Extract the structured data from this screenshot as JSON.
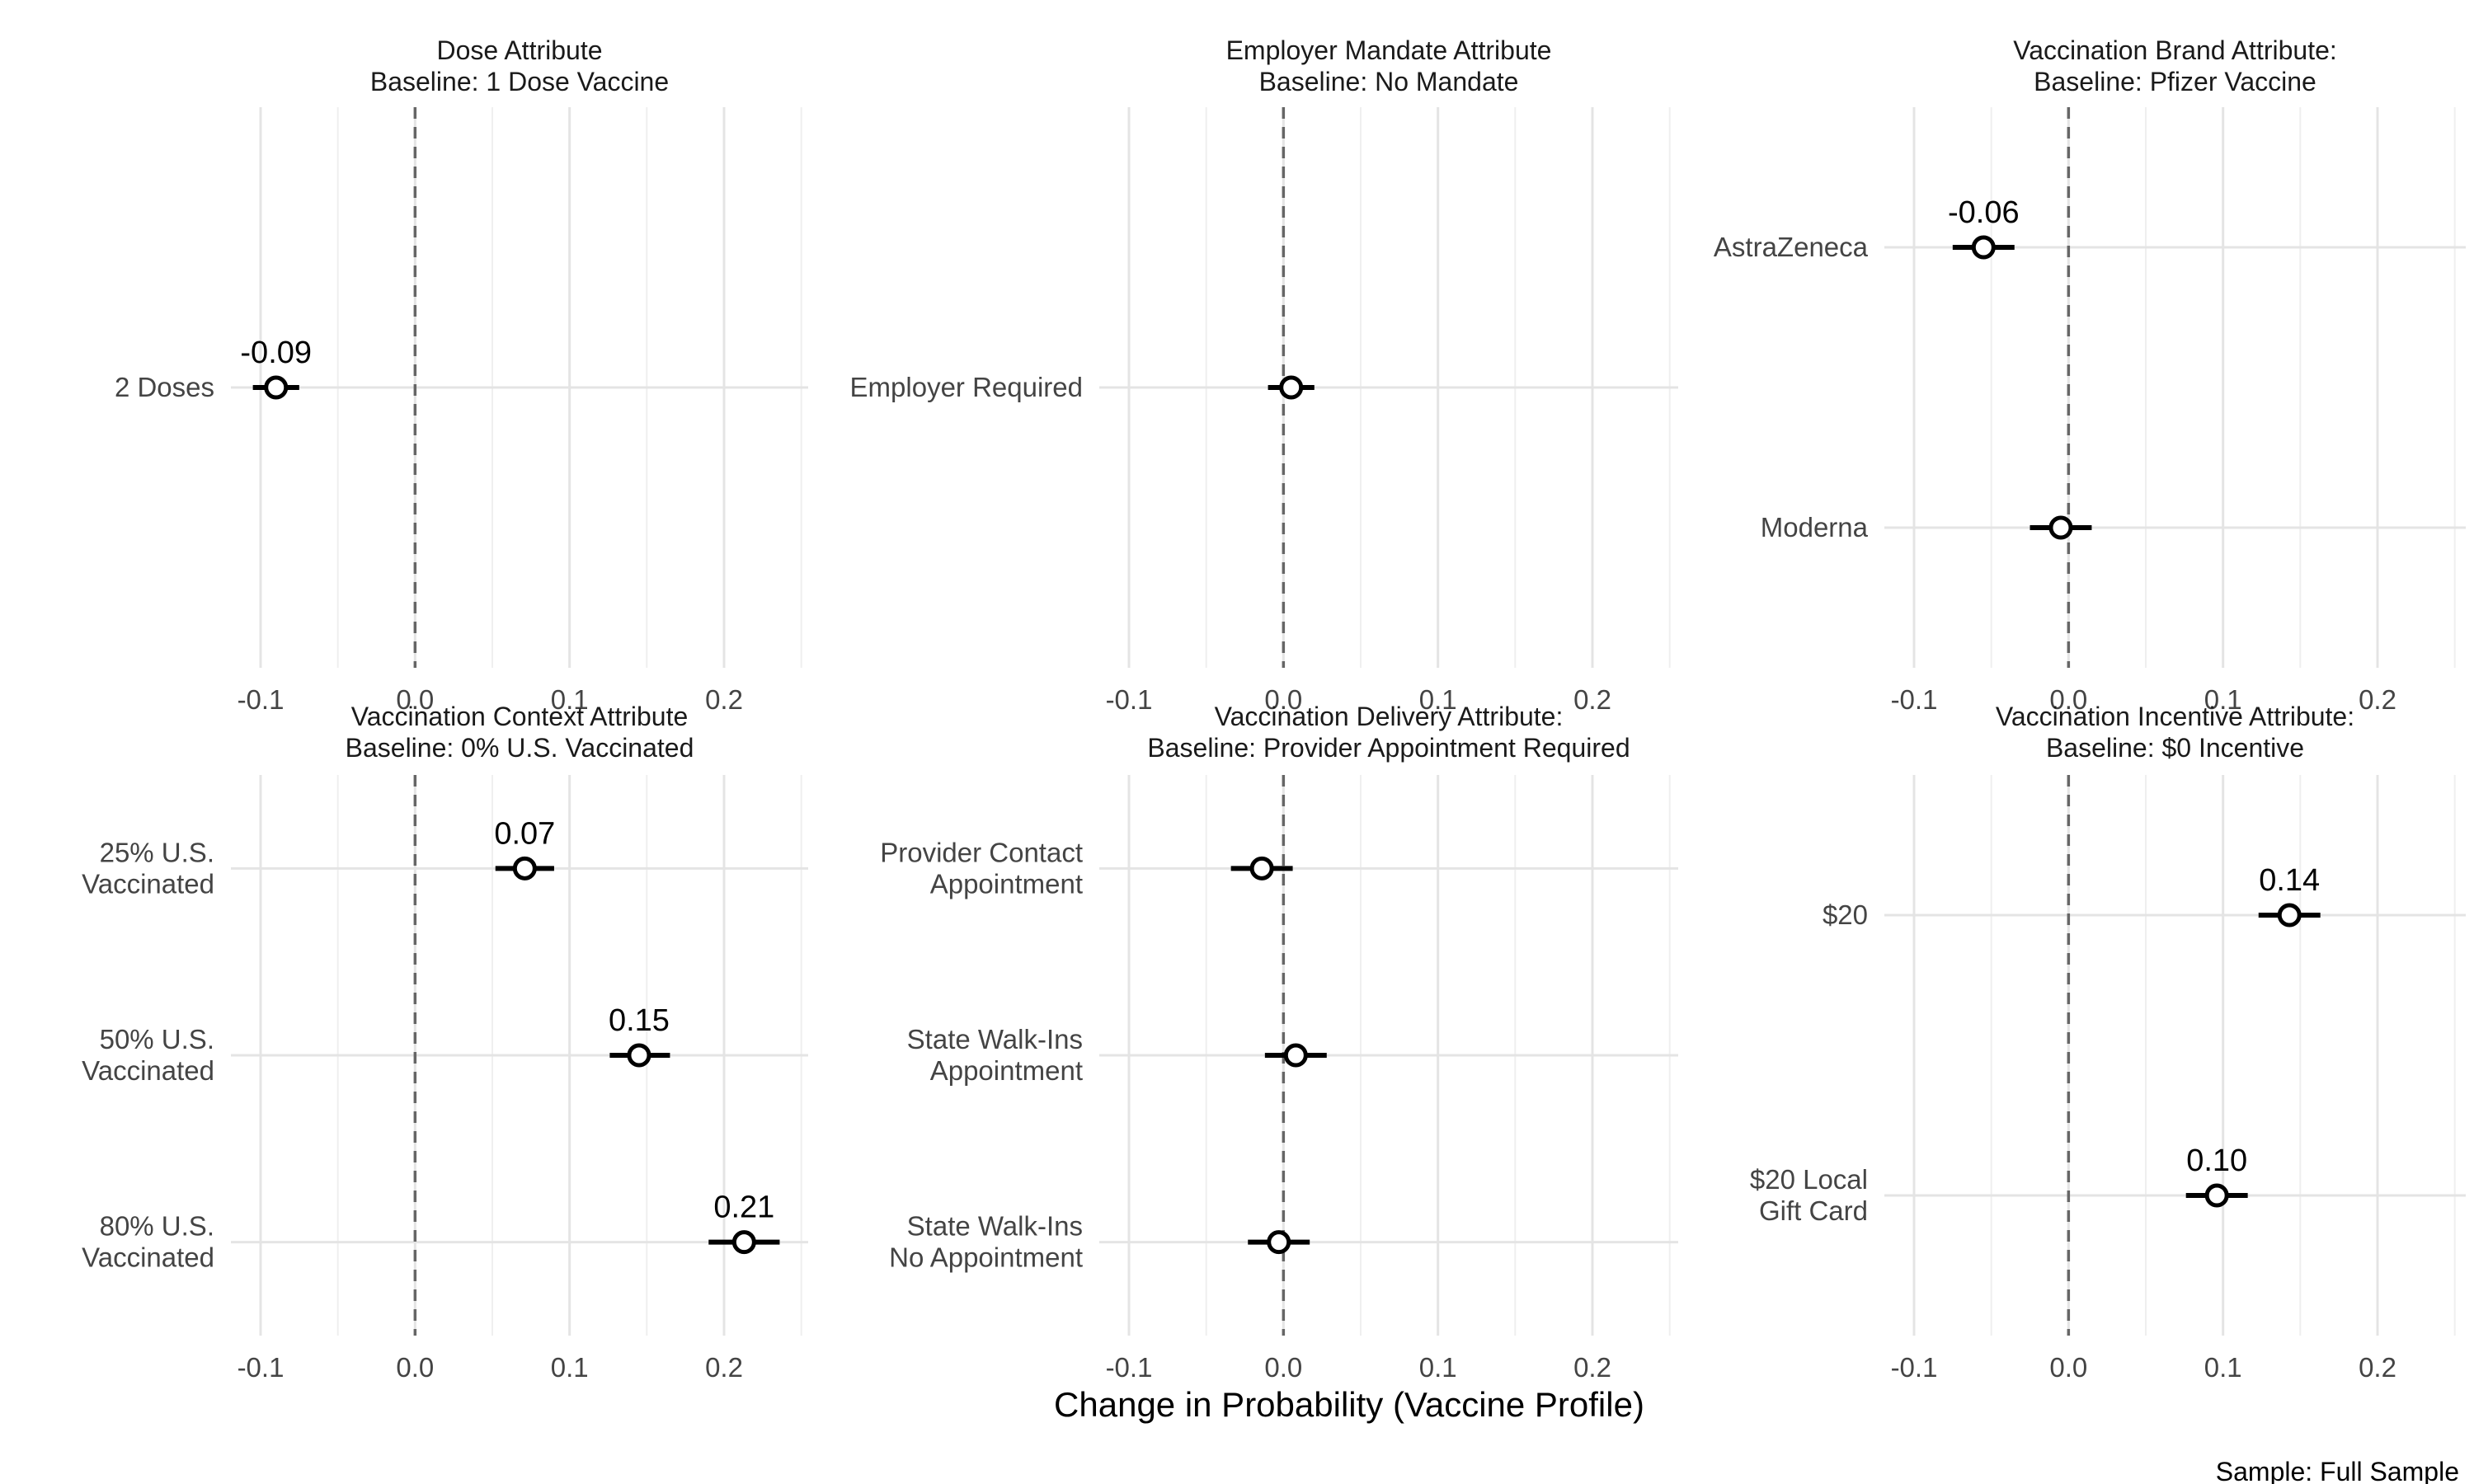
{
  "chart_data": [
    {
      "type": "scatter",
      "title": [
        "Dose Attribute",
        "Baseline: 1 Dose Vaccine"
      ],
      "categories": [
        [
          "2 Doses"
        ]
      ],
      "series": [
        {
          "values": [
            -0.09
          ],
          "ci_low": [
            -0.105
          ],
          "ci_high": [
            -0.075
          ],
          "labels": [
            "-0.09"
          ]
        }
      ],
      "xlim": [
        -0.1,
        0.2
      ],
      "xticks": [
        "-0.1",
        "0.0",
        "0.1",
        "0.2"
      ],
      "reference_line": 0
    },
    {
      "type": "scatter",
      "title": [
        "Employer Mandate Attribute",
        "Baseline: No Mandate"
      ],
      "categories": [
        [
          "Employer Required"
        ]
      ],
      "series": [
        {
          "values": [
            0.005
          ],
          "ci_low": [
            -0.01
          ],
          "ci_high": [
            0.02
          ],
          "labels": [
            ""
          ]
        }
      ],
      "xlim": [
        -0.1,
        0.2
      ],
      "xticks": [
        "-0.1",
        "0.0",
        "0.1",
        "0.2"
      ],
      "reference_line": 0
    },
    {
      "type": "scatter",
      "title": [
        "Vaccination Brand Attribute:",
        "Baseline: Pfizer Vaccine"
      ],
      "categories": [
        [
          "AstraZeneca"
        ],
        [
          "Moderna"
        ]
      ],
      "series": [
        {
          "values": [
            -0.055,
            -0.005
          ],
          "ci_low": [
            -0.075,
            -0.025
          ],
          "ci_high": [
            -0.035,
            0.015
          ],
          "labels": [
            "-0.06",
            ""
          ]
        }
      ],
      "xlim": [
        -0.1,
        0.2
      ],
      "xticks": [
        "-0.1",
        "0.0",
        "0.1",
        "0.2"
      ],
      "reference_line": 0
    },
    {
      "type": "scatter",
      "title": [
        "Vaccination Context Attribute",
        "Baseline: 0% U.S. Vaccinated"
      ],
      "categories": [
        [
          "25% U.S.",
          "Vaccinated"
        ],
        [
          "50% U.S.",
          "Vaccinated"
        ],
        [
          "80% U.S.",
          "Vaccinated"
        ]
      ],
      "series": [
        {
          "values": [
            0.071,
            0.145,
            0.213
          ],
          "ci_low": [
            0.052,
            0.126,
            0.19
          ],
          "ci_high": [
            0.09,
            0.165,
            0.236
          ],
          "labels": [
            "0.07",
            "0.15",
            "0.21"
          ]
        }
      ],
      "xlim": [
        -0.1,
        0.2
      ],
      "xticks": [
        "-0.1",
        "0.0",
        "0.1",
        "0.2"
      ],
      "reference_line": 0
    },
    {
      "type": "scatter",
      "title": [
        "Vaccination Delivery Attribute:",
        "Baseline: Provider Appointment Required"
      ],
      "categories": [
        [
          "Provider Contact",
          "Appointment"
        ],
        [
          "State Walk-Ins",
          "Appointment"
        ],
        [
          "State Walk-Ins",
          "No Appointment"
        ]
      ],
      "series": [
        {
          "values": [
            -0.014,
            0.008,
            -0.003
          ],
          "ci_low": [
            -0.034,
            -0.012,
            -0.023
          ],
          "ci_high": [
            0.006,
            0.028,
            0.017
          ],
          "labels": [
            "",
            "",
            ""
          ]
        }
      ],
      "xlim": [
        -0.1,
        0.2
      ],
      "xticks": [
        "-0.1",
        "0.0",
        "0.1",
        "0.2"
      ],
      "reference_line": 0
    },
    {
      "type": "scatter",
      "title": [
        "Vaccination Incentive Attribute:",
        "Baseline: $0 Incentive"
      ],
      "categories": [
        [
          "$20"
        ],
        [
          "$20 Local",
          "Gift Card"
        ]
      ],
      "series": [
        {
          "values": [
            0.143,
            0.096
          ],
          "ci_low": [
            0.123,
            0.076
          ],
          "ci_high": [
            0.163,
            0.116
          ],
          "labels": [
            "0.14",
            "0.10"
          ]
        }
      ],
      "xlim": [
        -0.1,
        0.2
      ],
      "xticks": [
        "-0.1",
        "0.0",
        "0.1",
        "0.2"
      ],
      "reference_line": 0
    }
  ],
  "xlabel": "Change in Probability (Vaccine Profile)",
  "caption": "Sample: Full Sample"
}
